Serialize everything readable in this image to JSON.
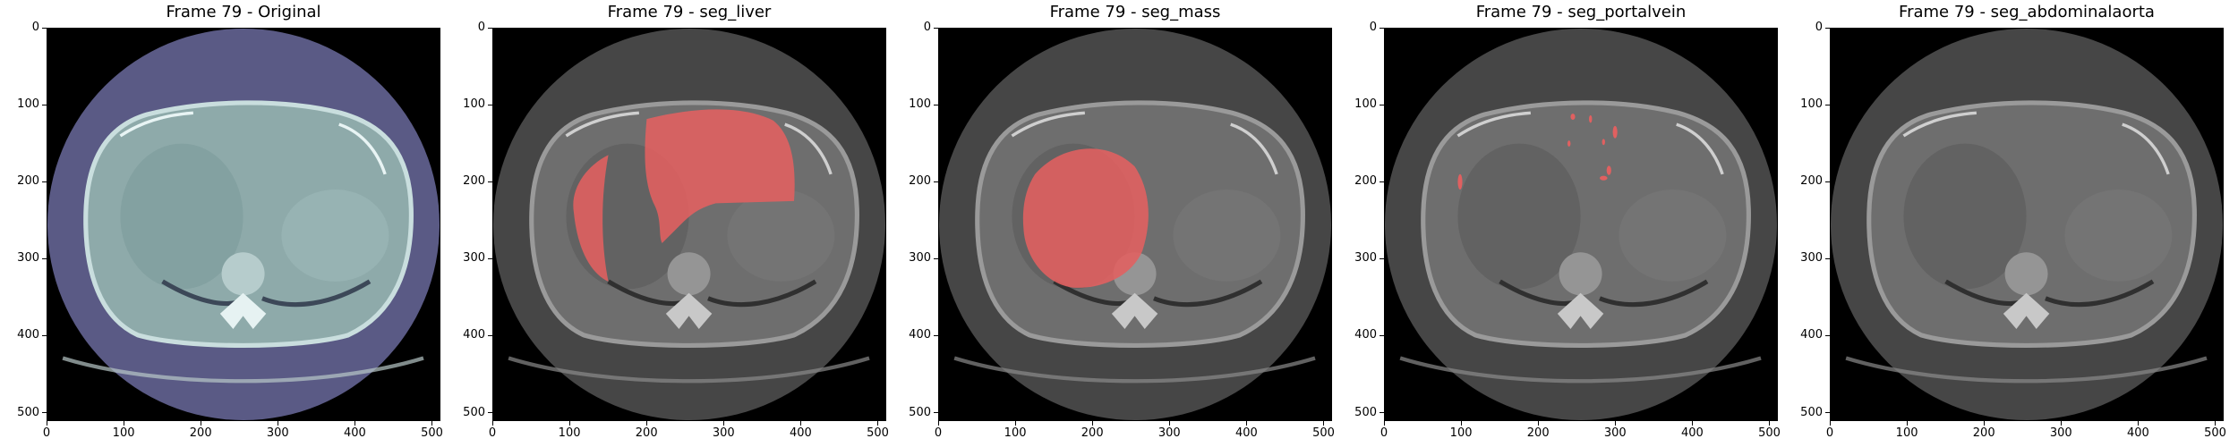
{
  "figure": {
    "panels": [
      {
        "title": "Frame 79 - Original",
        "mode": "original",
        "overlay": "none"
      },
      {
        "title": "Frame 79 - seg_liver",
        "mode": "gray",
        "overlay": "liver"
      },
      {
        "title": "Frame 79 - seg_mass",
        "mode": "gray",
        "overlay": "mass"
      },
      {
        "title": "Frame 79 - seg_portalvein",
        "mode": "gray",
        "overlay": "portalvein"
      },
      {
        "title": "Frame 79 - seg_abdominalaorta",
        "mode": "gray",
        "overlay": "none"
      }
    ],
    "x_ticks": [
      "0",
      "100",
      "200",
      "300",
      "400",
      "500"
    ],
    "y_ticks": [
      "0",
      "100",
      "200",
      "300",
      "400",
      "500"
    ],
    "axis_limits": {
      "x": [
        0,
        511
      ],
      "y": [
        511,
        0
      ]
    },
    "colors": {
      "overlay": "#e06060",
      "original_background": "#5a5a85",
      "original_body": "#8eaaaa",
      "gray_background": "#464646",
      "gray_body": "#6e6e6e"
    }
  }
}
